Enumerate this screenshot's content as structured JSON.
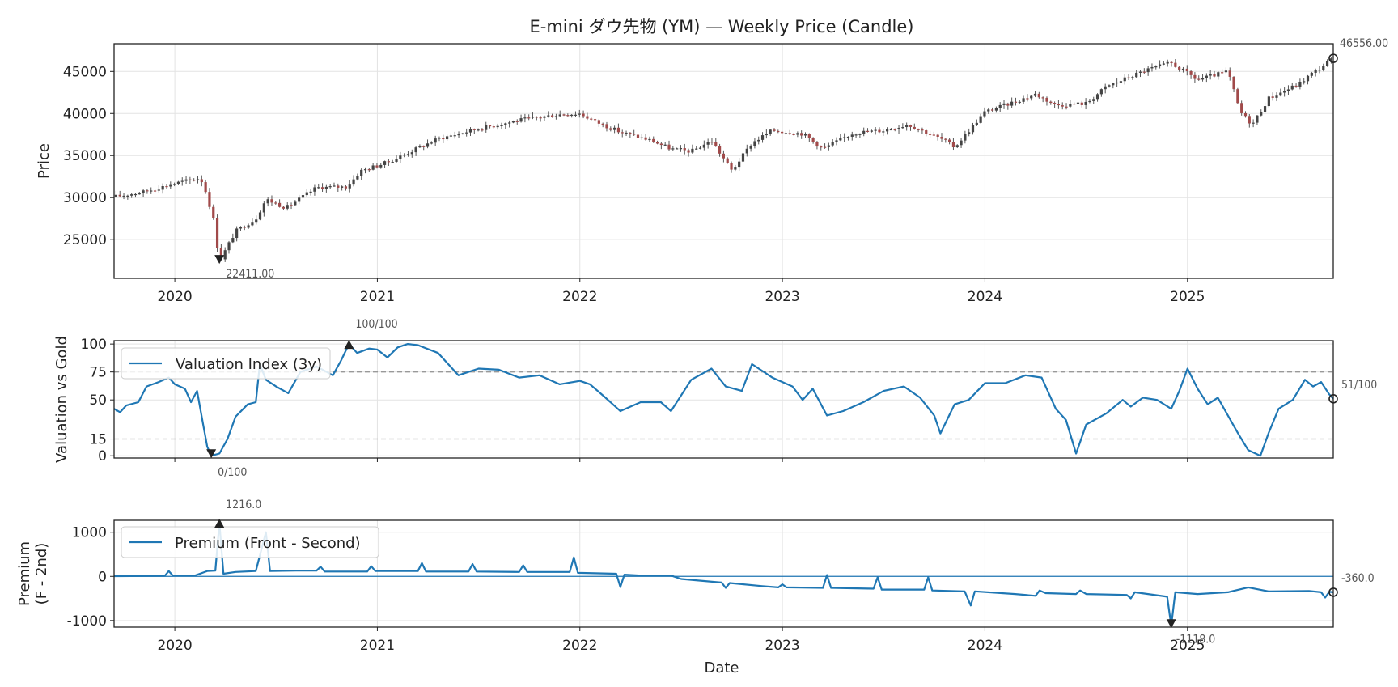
{
  "chart_data": [
    {
      "id": "price",
      "type": "candlestick",
      "title": "E-mini ダウ先物 (YM) — Weekly Price (Candle)",
      "ylabel": "Price",
      "xlabel": "",
      "xlim": [
        2019.7,
        2025.72
      ],
      "ylim": [
        20400,
        48300
      ],
      "yticks": [
        25000,
        30000,
        35000,
        40000,
        45000
      ],
      "xticks": [
        "2020",
        "2021",
        "2022",
        "2023",
        "2024",
        "2025"
      ],
      "xtick_values": [
        2020.0,
        2021.0,
        2022.0,
        2023.0,
        2024.0,
        2025.0
      ],
      "anchors": [
        [
          2019.7,
          30100
        ],
        [
          2019.85,
          30700
        ],
        [
          2020.0,
          31700
        ],
        [
          2020.12,
          32300
        ],
        [
          2020.14,
          31800
        ],
        [
          2020.19,
          27500
        ],
        [
          2020.22,
          22411
        ],
        [
          2020.3,
          26000
        ],
        [
          2020.4,
          27500
        ],
        [
          2020.45,
          29800
        ],
        [
          2020.55,
          28800
        ],
        [
          2020.7,
          31200
        ],
        [
          2020.85,
          31300
        ],
        [
          2020.92,
          33200
        ],
        [
          2021.05,
          34200
        ],
        [
          2021.3,
          37000
        ],
        [
          2021.5,
          38200
        ],
        [
          2021.7,
          39200
        ],
        [
          2021.9,
          39900
        ],
        [
          2022.0,
          40000
        ],
        [
          2022.08,
          39000
        ],
        [
          2022.2,
          37800
        ],
        [
          2022.35,
          36800
        ],
        [
          2022.45,
          35800
        ],
        [
          2022.55,
          35500
        ],
        [
          2022.65,
          36800
        ],
        [
          2022.75,
          33200
        ],
        [
          2022.85,
          36500
        ],
        [
          2022.95,
          38000
        ],
        [
          2023.1,
          37600
        ],
        [
          2023.2,
          35800
        ],
        [
          2023.35,
          37700
        ],
        [
          2023.5,
          38000
        ],
        [
          2023.62,
          38700
        ],
        [
          2023.8,
          36800
        ],
        [
          2023.85,
          36000
        ],
        [
          2024.0,
          40200
        ],
        [
          2024.1,
          41000
        ],
        [
          2024.25,
          42300
        ],
        [
          2024.35,
          41000
        ],
        [
          2024.5,
          41200
        ],
        [
          2024.6,
          43200
        ],
        [
          2024.8,
          45200
        ],
        [
          2024.92,
          46000
        ],
        [
          2025.05,
          44000
        ],
        [
          2025.2,
          45000
        ],
        [
          2025.26,
          40200
        ],
        [
          2025.32,
          38700
        ],
        [
          2025.4,
          41800
        ],
        [
          2025.55,
          43500
        ],
        [
          2025.6,
          44500
        ],
        [
          2025.72,
          46556
        ]
      ],
      "annotations": [
        {
          "label": "22411.00",
          "x": 2020.22,
          "y": 22411,
          "marker": "down"
        },
        {
          "label": "46556.00",
          "x": 2025.72,
          "y": 46556,
          "marker": "circle"
        }
      ],
      "colors": {
        "up": "#444444",
        "down": "#a14a4a",
        "grid": "#e3e3e3"
      }
    },
    {
      "id": "valuation",
      "type": "line",
      "ylabel": "Valuation vs Gold",
      "ylim": [
        -2,
        103
      ],
      "yticks": [
        0,
        15,
        50,
        75,
        100
      ],
      "hlines": [
        15,
        75
      ],
      "legend": "Valuation Index (3y)",
      "legend_position": "upper-left",
      "anchors": [
        [
          2019.7,
          42
        ],
        [
          2019.73,
          39
        ],
        [
          2019.76,
          45
        ],
        [
          2019.82,
          48
        ],
        [
          2019.86,
          62
        ],
        [
          2019.92,
          66
        ],
        [
          2019.97,
          70
        ],
        [
          2020.0,
          64
        ],
        [
          2020.05,
          60
        ],
        [
          2020.08,
          48
        ],
        [
          2020.11,
          58
        ],
        [
          2020.14,
          28
        ],
        [
          2020.16,
          8
        ],
        [
          2020.18,
          0
        ],
        [
          2020.22,
          2
        ],
        [
          2020.26,
          15
        ],
        [
          2020.3,
          35
        ],
        [
          2020.36,
          46
        ],
        [
          2020.4,
          48
        ],
        [
          2020.42,
          82
        ],
        [
          2020.45,
          68
        ],
        [
          2020.5,
          62
        ],
        [
          2020.56,
          56
        ],
        [
          2020.62,
          75
        ],
        [
          2020.7,
          80
        ],
        [
          2020.78,
          72
        ],
        [
          2020.82,
          85
        ],
        [
          2020.86,
          100
        ],
        [
          2020.9,
          92
        ],
        [
          2020.96,
          96
        ],
        [
          2021.0,
          95
        ],
        [
          2021.05,
          88
        ],
        [
          2021.1,
          97
        ],
        [
          2021.15,
          100
        ],
        [
          2021.2,
          99
        ],
        [
          2021.3,
          92
        ],
        [
          2021.4,
          72
        ],
        [
          2021.5,
          78
        ],
        [
          2021.6,
          77
        ],
        [
          2021.7,
          70
        ],
        [
          2021.8,
          72
        ],
        [
          2021.9,
          64
        ],
        [
          2022.0,
          67
        ],
        [
          2022.05,
          64
        ],
        [
          2022.12,
          53
        ],
        [
          2022.2,
          40
        ],
        [
          2022.3,
          48
        ],
        [
          2022.4,
          48
        ],
        [
          2022.45,
          40
        ],
        [
          2022.55,
          68
        ],
        [
          2022.65,
          78
        ],
        [
          2022.72,
          62
        ],
        [
          2022.8,
          58
        ],
        [
          2022.85,
          82
        ],
        [
          2022.95,
          70
        ],
        [
          2023.05,
          62
        ],
        [
          2023.1,
          50
        ],
        [
          2023.15,
          60
        ],
        [
          2023.22,
          36
        ],
        [
          2023.3,
          40
        ],
        [
          2023.4,
          48
        ],
        [
          2023.5,
          58
        ],
        [
          2023.6,
          62
        ],
        [
          2023.68,
          52
        ],
        [
          2023.75,
          36
        ],
        [
          2023.78,
          20
        ],
        [
          2023.85,
          46
        ],
        [
          2023.92,
          50
        ],
        [
          2024.0,
          65
        ],
        [
          2024.1,
          65
        ],
        [
          2024.2,
          72
        ],
        [
          2024.28,
          70
        ],
        [
          2024.35,
          42
        ],
        [
          2024.4,
          32
        ],
        [
          2024.45,
          2
        ],
        [
          2024.5,
          28
        ],
        [
          2024.6,
          38
        ],
        [
          2024.68,
          50
        ],
        [
          2024.72,
          44
        ],
        [
          2024.78,
          52
        ],
        [
          2024.85,
          50
        ],
        [
          2024.92,
          42
        ],
        [
          2024.96,
          58
        ],
        [
          2025.0,
          78
        ],
        [
          2025.05,
          60
        ],
        [
          2025.1,
          46
        ],
        [
          2025.15,
          52
        ],
        [
          2025.2,
          36
        ],
        [
          2025.25,
          20
        ],
        [
          2025.3,
          5
        ],
        [
          2025.36,
          0
        ],
        [
          2025.4,
          20
        ],
        [
          2025.45,
          42
        ],
        [
          2025.52,
          50
        ],
        [
          2025.58,
          68
        ],
        [
          2025.62,
          62
        ],
        [
          2025.66,
          66
        ],
        [
          2025.7,
          55
        ],
        [
          2025.72,
          51
        ]
      ],
      "annotations": [
        {
          "label": "100/100",
          "x": 2020.86,
          "y": 100,
          "marker": "up"
        },
        {
          "label": "0/100",
          "x": 2020.18,
          "y": 0,
          "marker": "down"
        },
        {
          "label": "51/100",
          "x": 2025.72,
          "y": 51,
          "marker": "circle"
        }
      ],
      "colors": {
        "line": "#1f77b4",
        "hline": "#999999"
      }
    },
    {
      "id": "premium",
      "type": "line",
      "ylabel": [
        "Premium",
        "(F - 2nd)"
      ],
      "xlabel": "Date",
      "ylim": [
        -1150,
        1270
      ],
      "yticks": [
        -1000,
        0,
        1000
      ],
      "zero_line": 0,
      "legend": "Premium (Front - Second)",
      "legend_position": "upper-left",
      "anchors": [
        [
          2019.7,
          5
        ],
        [
          2019.95,
          10
        ],
        [
          2019.97,
          120
        ],
        [
          2019.99,
          20
        ],
        [
          2020.1,
          20
        ],
        [
          2020.16,
          120
        ],
        [
          2020.2,
          130
        ],
        [
          2020.22,
          1216
        ],
        [
          2020.24,
          60
        ],
        [
          2020.3,
          100
        ],
        [
          2020.4,
          120
        ],
        [
          2020.45,
          1000
        ],
        [
          2020.47,
          120
        ],
        [
          2020.6,
          130
        ],
        [
          2020.7,
          130
        ],
        [
          2020.72,
          220
        ],
        [
          2020.74,
          110
        ],
        [
          2020.95,
          110
        ],
        [
          2020.97,
          230
        ],
        [
          2020.99,
          120
        ],
        [
          2021.2,
          120
        ],
        [
          2021.22,
          300
        ],
        [
          2021.24,
          110
        ],
        [
          2021.45,
          110
        ],
        [
          2021.47,
          280
        ],
        [
          2021.49,
          110
        ],
        [
          2021.7,
          100
        ],
        [
          2021.72,
          250
        ],
        [
          2021.74,
          100
        ],
        [
          2021.95,
          100
        ],
        [
          2021.97,
          430
        ],
        [
          2021.99,
          80
        ],
        [
          2022.18,
          60
        ],
        [
          2022.2,
          -240
        ],
        [
          2022.22,
          40
        ],
        [
          2022.3,
          20
        ],
        [
          2022.45,
          20
        ],
        [
          2022.5,
          -60
        ],
        [
          2022.7,
          -140
        ],
        [
          2022.72,
          -260
        ],
        [
          2022.74,
          -150
        ],
        [
          2022.9,
          -220
        ],
        [
          2022.98,
          -250
        ],
        [
          2023.0,
          -180
        ],
        [
          2023.02,
          -250
        ],
        [
          2023.2,
          -260
        ],
        [
          2023.22,
          30
        ],
        [
          2023.24,
          -260
        ],
        [
          2023.45,
          -280
        ],
        [
          2023.47,
          -20
        ],
        [
          2023.49,
          -300
        ],
        [
          2023.7,
          -300
        ],
        [
          2023.72,
          -20
        ],
        [
          2023.74,
          -320
        ],
        [
          2023.9,
          -340
        ],
        [
          2023.93,
          -660
        ],
        [
          2023.95,
          -340
        ],
        [
          2024.15,
          -400
        ],
        [
          2024.25,
          -440
        ],
        [
          2024.27,
          -320
        ],
        [
          2024.3,
          -380
        ],
        [
          2024.45,
          -400
        ],
        [
          2024.47,
          -320
        ],
        [
          2024.5,
          -400
        ],
        [
          2024.7,
          -420
        ],
        [
          2024.72,
          -500
        ],
        [
          2024.74,
          -360
        ],
        [
          2024.9,
          -460
        ],
        [
          2024.92,
          -1118
        ],
        [
          2024.94,
          -360
        ],
        [
          2025.05,
          -400
        ],
        [
          2025.2,
          -360
        ],
        [
          2025.3,
          -250
        ],
        [
          2025.4,
          -340
        ],
        [
          2025.6,
          -330
        ],
        [
          2025.66,
          -360
        ],
        [
          2025.68,
          -480
        ],
        [
          2025.7,
          -350
        ],
        [
          2025.72,
          -360
        ]
      ],
      "annotations": [
        {
          "label": "1216.0",
          "x": 2020.22,
          "y": 1216,
          "marker": "up"
        },
        {
          "label": "-1118.0",
          "x": 2024.92,
          "y": -1118,
          "marker": "down"
        },
        {
          "label": "-360.0",
          "x": 2025.72,
          "y": -360,
          "marker": "circle"
        }
      ],
      "colors": {
        "line": "#1f77b4",
        "zero": "#1f77b4"
      }
    }
  ]
}
